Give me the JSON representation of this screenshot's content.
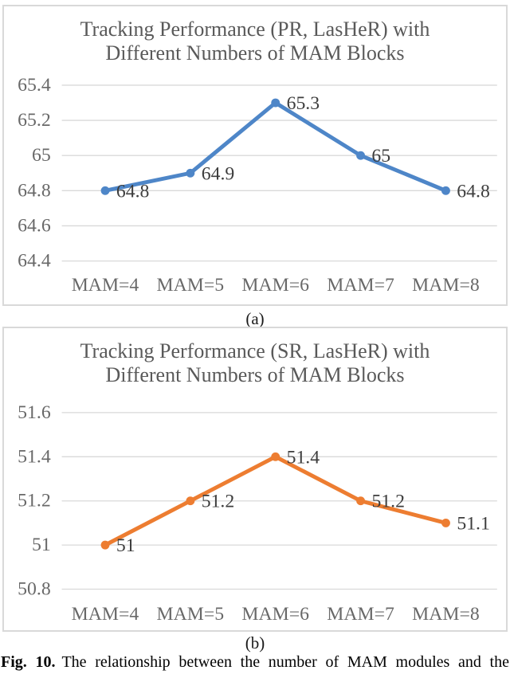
{
  "figure": {
    "sub_label_a": "(a)",
    "sub_label_b": "(b)",
    "caption_label": "Fig. 10.",
    "caption_text": "The relationship between the number of MAM modules and the"
  },
  "colors": {
    "pr_series": "#4e86c8",
    "sr_series": "#ed7d31",
    "gridline": "#d9d9d9",
    "card_border": "#d9d9d9",
    "title_text": "#595959",
    "axis_text": "#686868",
    "data_label_text": "#3d3d3d"
  },
  "chart_data": [
    {
      "type": "line",
      "title": "Tracking Performance (PR, LasHeR) with Different Numbers of MAM Blocks",
      "title_lines": [
        "Tracking Performance (PR, LasHeR) with",
        "Different Numbers of MAM Blocks"
      ],
      "categories": [
        "MAM=4",
        "MAM=5",
        "MAM=6",
        "MAM=7",
        "MAM=8"
      ],
      "values": [
        64.8,
        64.9,
        65.3,
        65,
        64.8
      ],
      "data_labels": [
        "64.8",
        "64.9",
        "65.3",
        "65",
        "64.8"
      ],
      "yticks": [
        65.4,
        65.2,
        65,
        64.8,
        64.6,
        64.4
      ],
      "ytick_labels": [
        "65.4",
        "65.2",
        "65",
        "64.8",
        "64.6",
        "64.4"
      ],
      "ylim": [
        64.4,
        65.4
      ],
      "xlabel": "",
      "ylabel": "",
      "grid": true,
      "legend": "none",
      "series_color": "#4e86c8"
    },
    {
      "type": "line",
      "title": "Tracking Performance (SR, LasHeR) with Different Numbers of MAM Blocks",
      "title_lines": [
        "Tracking Performance (SR, LasHeR) with",
        "Different Numbers of MAM Blocks"
      ],
      "categories": [
        "MAM=4",
        "MAM=5",
        "MAM=6",
        "MAM=7",
        "MAM=8"
      ],
      "values": [
        51,
        51.2,
        51.4,
        51.2,
        51.1
      ],
      "data_labels": [
        "51",
        "51.2",
        "51.4",
        "51.2",
        "51.1"
      ],
      "yticks": [
        51.6,
        51.4,
        51.2,
        51,
        50.8
      ],
      "ytick_labels": [
        "51.6",
        "51.4",
        "51.2",
        "51",
        "50.8"
      ],
      "ylim": [
        50.8,
        51.6
      ],
      "xlabel": "",
      "ylabel": "",
      "grid": true,
      "legend": "none",
      "series_color": "#ed7d31"
    }
  ]
}
